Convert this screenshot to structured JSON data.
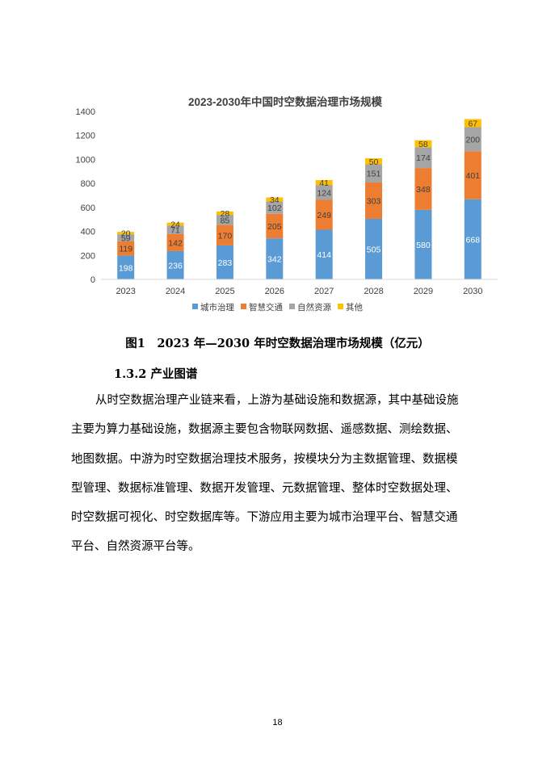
{
  "chart_data": {
    "type": "bar",
    "stacked": true,
    "title": "2023-2030年中国时空数据治理市场规模",
    "categories": [
      "2023",
      "2024",
      "2025",
      "2026",
      "2027",
      "2028",
      "2029",
      "2030"
    ],
    "series": [
      {
        "name": "城市治理",
        "color": "#5B9BD5",
        "values": [
          198,
          236,
          283,
          342,
          414,
          505,
          580,
          668
        ]
      },
      {
        "name": "智慧交通",
        "color": "#ED7D31",
        "values": [
          119,
          142,
          170,
          205,
          249,
          303,
          348,
          401
        ]
      },
      {
        "name": "自然资源",
        "color": "#A5A5A5",
        "values": [
          59,
          71,
          85,
          102,
          124,
          151,
          174,
          200
        ]
      },
      {
        "name": "其他",
        "color": "#FFC000",
        "values": [
          20,
          24,
          28,
          34,
          41,
          50,
          58,
          67
        ]
      }
    ],
    "yticks": [
      "0",
      "200",
      "400",
      "600",
      "800",
      "1000",
      "1200",
      "1400"
    ],
    "ylim": [
      0,
      1400
    ],
    "grid": false,
    "legend": "bottom"
  },
  "caption": "图1　2023 年—2030 年时空数据治理市场规模（亿元）",
  "section_heading": "1.3.2 产业图谱",
  "paragraph_lines": [
    "从时空数据治理产业链来看，上游为基础设施和数据源，其中基础设施",
    "主要为算力基础设施，数据源主要包含物联网数据、遥感数据、测绘数据、",
    "地图数据。中游为时空数据治理技术服务，按模块分为主数据管理、数据模",
    "型管理、数据标准管理、数据开发管理、元数据管理、整体时空数据处理、",
    "时空数据可视化、时空数据库等。下游应用主要为城市治理平台、智慧交通",
    "平台、自然资源平台等。"
  ],
  "page_number": "18"
}
